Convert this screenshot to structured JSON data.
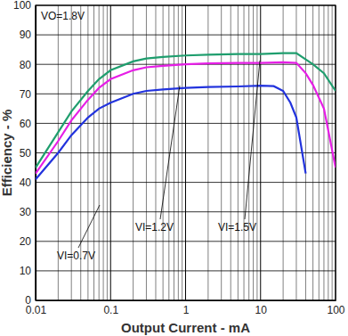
{
  "chart_data": {
    "type": "line",
    "title": "VO=1.8V",
    "x_label": "Output Current - mA",
    "y_label": "Efficiency - %",
    "log": "x",
    "grid": true,
    "xlim": [
      0.01,
      100
    ],
    "xticks": [
      0.01,
      0.1,
      1,
      10,
      100
    ],
    "ylim": [
      0,
      100
    ],
    "yticks": [
      0,
      10,
      20,
      30,
      40,
      50,
      60,
      70,
      80,
      90,
      100
    ],
    "series": [
      {
        "name": "VI=0.7V",
        "color": "#2233dd",
        "x": [
          0.01,
          0.02,
          0.03,
          0.05,
          0.07,
          0.1,
          0.2,
          0.3,
          0.5,
          1,
          2,
          5,
          10,
          15,
          20,
          25,
          30,
          40
        ],
        "values": [
          41,
          50,
          56,
          62,
          65,
          67,
          70,
          71,
          71.5,
          72,
          72.3,
          72.5,
          72.8,
          72.6,
          71,
          67,
          62,
          43
        ]
      },
      {
        "name": "VI=1.2V",
        "color": "#e61ee6",
        "x": [
          0.01,
          0.02,
          0.03,
          0.05,
          0.07,
          0.1,
          0.2,
          0.3,
          0.5,
          1,
          2,
          5,
          10,
          20,
          30,
          40,
          50,
          70,
          100
        ],
        "values": [
          43,
          54,
          61,
          68,
          72,
          75,
          78,
          79,
          79.5,
          80,
          80.3,
          80.5,
          80.5,
          80.7,
          80.5,
          77,
          73,
          65,
          45
        ]
      },
      {
        "name": "VI=1.5V",
        "color": "#1f9e6e",
        "x": [
          0.01,
          0.02,
          0.03,
          0.05,
          0.07,
          0.1,
          0.2,
          0.3,
          0.5,
          1,
          2,
          5,
          10,
          20,
          30,
          50,
          70,
          100
        ],
        "values": [
          45,
          57,
          64,
          71,
          75,
          78,
          81,
          82,
          82.5,
          83,
          83.3,
          83.5,
          83.5,
          83.8,
          83.8,
          80,
          77,
          71
        ]
      }
    ]
  }
}
